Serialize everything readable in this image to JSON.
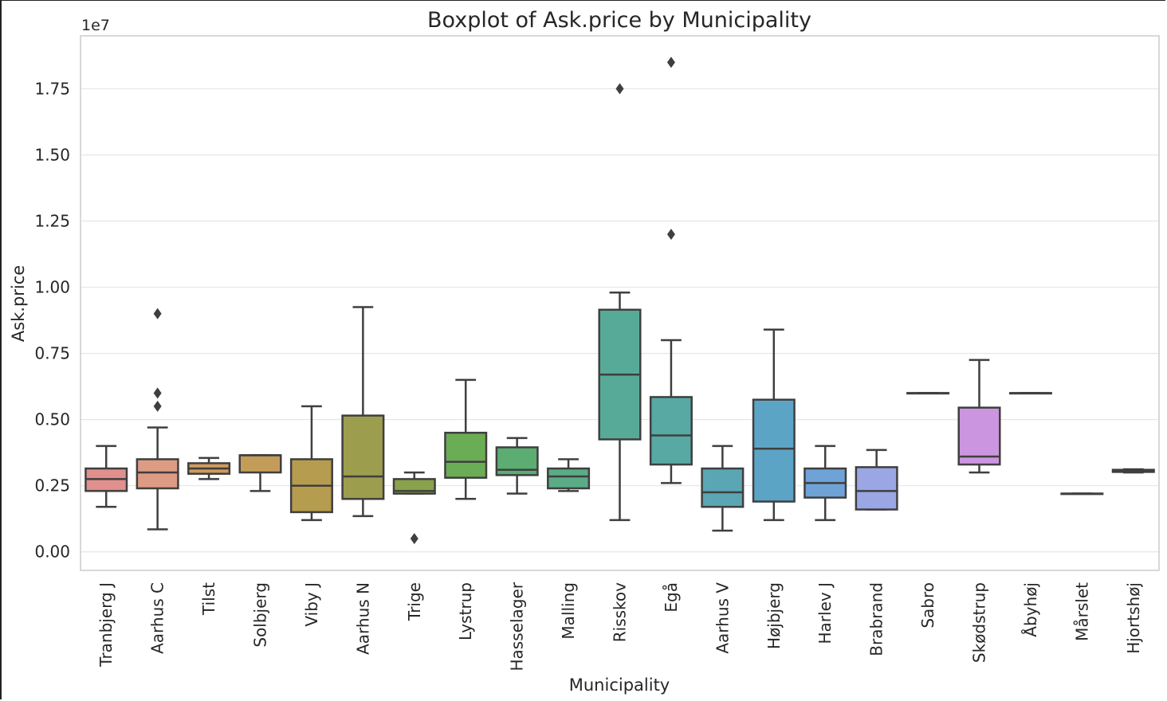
{
  "chart_data": {
    "type": "box",
    "title": "Boxplot of Ask.price by Municipality",
    "xlabel": "Municipality",
    "ylabel": "Ask.price",
    "y_offset_label": "1e7",
    "ylim": [
      -0.07,
      1.95
    ],
    "yticks": [
      0,
      0.25,
      0.5,
      0.75,
      1.0,
      1.25,
      1.5,
      1.75
    ],
    "ytick_labels": [
      "0.00",
      "0.25",
      "0.50",
      "0.75",
      "1.00",
      "1.25",
      "1.50",
      "1.75"
    ],
    "grid": "horizontal",
    "categories": [
      "Tranbjerg J",
      "Aarhus C",
      "Tilst",
      "Solbjerg",
      "Viby J",
      "Aarhus N",
      "Trige",
      "Lystrup",
      "Hasselager",
      "Malling",
      "Risskov",
      "Egå",
      "Aarhus V",
      "Højbjerg",
      "Harlev J",
      "Brabrand",
      "Sabro",
      "Skødstrup",
      "Åbyhøj",
      "Mårslet",
      "Hjortshøj"
    ],
    "boxes": [
      {
        "wlo": 0.17,
        "q1": 0.23,
        "med": 0.275,
        "q3": 0.315,
        "whi": 0.4,
        "fliers": [],
        "color": "#e1908e"
      },
      {
        "wlo": 0.085,
        "q1": 0.24,
        "med": 0.3,
        "q3": 0.35,
        "whi": 0.47,
        "fliers": [
          0.55,
          0.6,
          0.9
        ],
        "color": "#dd9b83"
      },
      {
        "wlo": 0.275,
        "q1": 0.295,
        "med": 0.315,
        "q3": 0.335,
        "whi": 0.355,
        "fliers": [],
        "color": "#cf9b5e"
      },
      {
        "wlo": 0.23,
        "q1": 0.3,
        "med": 0.365,
        "q3": 0.365,
        "whi": 0.365,
        "fliers": [],
        "color": "#c49c59"
      },
      {
        "wlo": 0.12,
        "q1": 0.15,
        "med": 0.25,
        "q3": 0.35,
        "whi": 0.55,
        "fliers": [],
        "color": "#b59c4e"
      },
      {
        "wlo": 0.135,
        "q1": 0.2,
        "med": 0.285,
        "q3": 0.515,
        "whi": 0.925,
        "fliers": [],
        "color": "#9d9d4e"
      },
      {
        "wlo": 0.22,
        "q1": 0.22,
        "med": 0.23,
        "q3": 0.275,
        "whi": 0.3,
        "fliers": [
          0.05
        ],
        "color": "#8aa24c"
      },
      {
        "wlo": 0.2,
        "q1": 0.28,
        "med": 0.34,
        "q3": 0.45,
        "whi": 0.65,
        "fliers": [],
        "color": "#6aad55"
      },
      {
        "wlo": 0.22,
        "q1": 0.29,
        "med": 0.31,
        "q3": 0.395,
        "whi": 0.43,
        "fliers": [],
        "color": "#5bad72"
      },
      {
        "wlo": 0.23,
        "q1": 0.24,
        "med": 0.285,
        "q3": 0.315,
        "whi": 0.35,
        "fliers": [],
        "color": "#5aac86"
      },
      {
        "wlo": 0.12,
        "q1": 0.425,
        "med": 0.67,
        "q3": 0.915,
        "whi": 0.98,
        "fliers": [
          1.75
        ],
        "color": "#58aa98"
      },
      {
        "wlo": 0.26,
        "q1": 0.33,
        "med": 0.44,
        "q3": 0.585,
        "whi": 0.8,
        "fliers": [
          1.2,
          1.85
        ],
        "color": "#58a8a4"
      },
      {
        "wlo": 0.08,
        "q1": 0.17,
        "med": 0.225,
        "q3": 0.315,
        "whi": 0.4,
        "fliers": [],
        "color": "#5aa6b4"
      },
      {
        "wlo": 0.12,
        "q1": 0.19,
        "med": 0.39,
        "q3": 0.575,
        "whi": 0.84,
        "fliers": [],
        "color": "#5ca4c6"
      },
      {
        "wlo": 0.12,
        "q1": 0.205,
        "med": 0.26,
        "q3": 0.315,
        "whi": 0.4,
        "fliers": [],
        "color": "#6fa3d8"
      },
      {
        "wlo": 0.16,
        "q1": 0.16,
        "med": 0.23,
        "q3": 0.32,
        "whi": 0.385,
        "fliers": [],
        "color": "#9aa7e4"
      },
      {
        "wlo": 0.6,
        "q1": 0.6,
        "med": 0.6,
        "q3": 0.6,
        "whi": 0.6,
        "fliers": [],
        "color": "#b39ee6"
      },
      {
        "wlo": 0.3,
        "q1": 0.33,
        "med": 0.36,
        "q3": 0.545,
        "whi": 0.725,
        "fliers": [],
        "color": "#cc95df"
      },
      {
        "wlo": 0.6,
        "q1": 0.6,
        "med": 0.6,
        "q3": 0.6,
        "whi": 0.6,
        "fliers": [],
        "color": "#dc90d2"
      },
      {
        "wlo": 0.22,
        "q1": 0.22,
        "med": 0.22,
        "q3": 0.22,
        "whi": 0.22,
        "fliers": [],
        "color": "#e38dbf"
      },
      {
        "wlo": 0.3,
        "q1": 0.302,
        "med": 0.305,
        "q3": 0.31,
        "whi": 0.312,
        "fliers": [],
        "color": "#e68eaa"
      }
    ]
  }
}
